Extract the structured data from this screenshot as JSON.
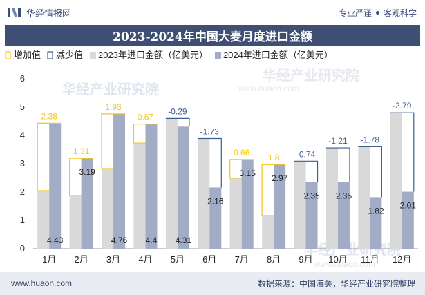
{
  "header": {
    "brand_name": "华经情报网",
    "tagline_left": "专业严谨",
    "tagline_right": "客观科学"
  },
  "title": "2023-2024年中国大麦月度进口金额",
  "footer": {
    "website": "www.huaon.com",
    "source": "数据来源：中国海关，华经产业研究院整理"
  },
  "watermark": {
    "text_cn": "华经产业研究院",
    "text_url": "www.huaon.com"
  },
  "colors": {
    "bar_2023": "#d9d9d9",
    "bar_2024": "#a3acc6",
    "increase": "#f5c518",
    "decrease": "#3d5f8f",
    "title_bg": "#3f4f73"
  },
  "chart_data": {
    "type": "bar",
    "title": "2023-2024年中国大麦月度进口金额",
    "categories": [
      "1月",
      "2月",
      "3月",
      "4月",
      "5月",
      "6月",
      "7月",
      "8月",
      "9月",
      "10月",
      "11月",
      "12月"
    ],
    "series": [
      {
        "name": "2023年进口金额（亿美元）",
        "values": [
          2.05,
          1.88,
          2.83,
          3.73,
          4.6,
          3.89,
          2.49,
          1.17,
          3.09,
          3.56,
          3.6,
          4.8
        ]
      },
      {
        "name": "2024年进口金额（亿美元）",
        "values": [
          4.43,
          3.19,
          4.76,
          4.4,
          4.31,
          2.16,
          3.15,
          2.97,
          2.35,
          2.35,
          1.82,
          2.01
        ]
      }
    ],
    "changes": [
      "2.38",
      "1.31",
      "1.93",
      "0.67",
      "-0.29",
      "-1.73",
      "0.66",
      "1.8",
      "-0.74",
      "-1.21",
      "-1.78",
      "-2.79"
    ],
    "legend": [
      "增加值",
      "减少值",
      "2023年进口金额（亿美元）",
      "2024年进口金额（亿美元）"
    ],
    "legend_position": "top-left",
    "yticks": [
      "0",
      "1",
      "2",
      "3",
      "4",
      "5",
      "6"
    ],
    "ylim": [
      0,
      6
    ],
    "grid": false
  }
}
